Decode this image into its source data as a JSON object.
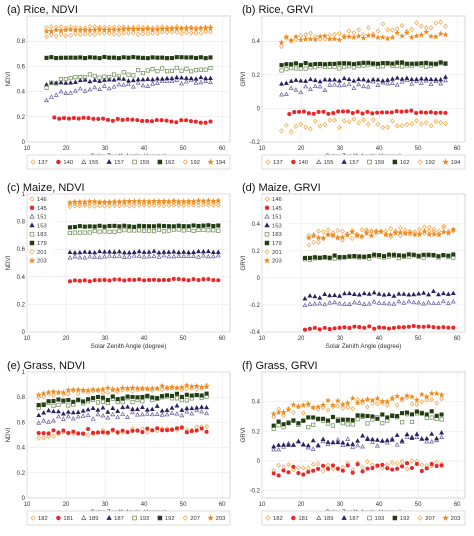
{
  "legend": {
    "series_styles": [
      {
        "shape": "diamond",
        "filled": false,
        "color": "#f4a340"
      },
      {
        "shape": "circle",
        "filled": true,
        "color": "#e8282b"
      },
      {
        "shape": "triangle",
        "filled": false,
        "color": "#6a5a9a"
      },
      {
        "shape": "triangle",
        "filled": true,
        "color": "#2b2260"
      },
      {
        "shape": "square",
        "filled": false,
        "color": "#6a8a50"
      },
      {
        "shape": "square",
        "filled": true,
        "color": "#243d14"
      },
      {
        "shape": "diamond",
        "filled": false,
        "color": "#f2a048"
      },
      {
        "shape": "star",
        "filled": true,
        "color": "#f08a20"
      }
    ]
  },
  "chart_data": [
    {
      "type": "scatter",
      "title": "(a) Rice, NDVI",
      "xlabel": "Solar Zenith Angle (degree)",
      "ylabel": "NDVI",
      "xlim": [
        10,
        62
      ],
      "ylim": [
        0,
        1.0
      ],
      "xticks": [
        10,
        20,
        30,
        40,
        50,
        60
      ],
      "yticks": [
        0,
        0.2,
        0.4,
        0.6,
        0.8
      ],
      "grid": true,
      "legend_position": "bottom",
      "legend_columns": 8,
      "series": [
        {
          "name": "137",
          "x_range": [
            15,
            57
          ],
          "start": 0.91,
          "end": 0.91,
          "jitter": 0.006
        },
        {
          "name": "140",
          "x_range": [
            17,
            57
          ],
          "start": 0.2,
          "end": 0.16,
          "jitter": 0.01
        },
        {
          "name": "155",
          "x_range": [
            15,
            57
          ],
          "start": 0.34,
          "end": 0.49,
          "jitter": 0.02
        },
        {
          "name": "157",
          "x_range": [
            15,
            57
          ],
          "start": 0.46,
          "end": 0.51,
          "jitter": 0.01
        },
        {
          "name": "159",
          "x_range": [
            15,
            57
          ],
          "start": 0.44,
          "end": 0.59,
          "jitter": 0.02
        },
        {
          "name": "162",
          "x_range": [
            15,
            57
          ],
          "start": 0.67,
          "end": 0.67,
          "jitter": 0.005
        },
        {
          "name": "192",
          "x_range": [
            15,
            57
          ],
          "start": 0.84,
          "end": 0.87,
          "jitter": 0.008
        },
        {
          "name": "194",
          "x_range": [
            15,
            57
          ],
          "start": 0.88,
          "end": 0.9,
          "jitter": 0.005
        }
      ]
    },
    {
      "type": "scatter",
      "title": "(b) Rice, GRVI",
      "xlabel": "Solar Zenith Angle (degree)",
      "ylabel": "GRVI",
      "xlim": [
        10,
        62
      ],
      "ylim": [
        -0.2,
        0.55
      ],
      "xticks": [
        10,
        20,
        30,
        40,
        50,
        60
      ],
      "yticks": [
        -0.2,
        0,
        0.2,
        0.4
      ],
      "grid": true,
      "legend_position": "bottom",
      "legend_columns": 8,
      "series": [
        {
          "name": "137",
          "x_range": [
            15,
            57
          ],
          "start": -0.12,
          "end": -0.08,
          "jitter": 0.03
        },
        {
          "name": "140",
          "x_range": [
            17,
            57
          ],
          "start": -0.03,
          "end": -0.02,
          "jitter": 0.008
        },
        {
          "name": "155",
          "x_range": [
            15,
            57
          ],
          "start": 0.09,
          "end": 0.16,
          "jitter": 0.02
        },
        {
          "name": "157",
          "x_range": [
            15,
            57
          ],
          "start": 0.15,
          "end": 0.18,
          "jitter": 0.01
        },
        {
          "name": "159",
          "x_range": [
            15,
            57
          ],
          "start": 0.23,
          "end": 0.26,
          "jitter": 0.01
        },
        {
          "name": "162",
          "x_range": [
            15,
            57
          ],
          "start": 0.26,
          "end": 0.27,
          "jitter": 0.006
        },
        {
          "name": "192",
          "x_range": [
            15,
            57
          ],
          "start": 0.38,
          "end": 0.5,
          "jitter": 0.03
        },
        {
          "name": "194",
          "x_range": [
            15,
            57
          ],
          "start": 0.4,
          "end": 0.44,
          "jitter": 0.02
        }
      ]
    },
    {
      "type": "scatter",
      "title": "(c) Maize, NDVI",
      "xlabel": "Solar Zenith Angle (degree)",
      "ylabel": "NDVI",
      "xlim": [
        10,
        62
      ],
      "ylim": [
        0,
        1.0
      ],
      "xticks": [
        10,
        20,
        30,
        40,
        50,
        60
      ],
      "yticks": [
        0,
        0.2,
        0.4,
        0.6,
        0.8,
        1.0
      ],
      "grid": true,
      "legend_position": "top-left",
      "legend_columns": 1,
      "series": [
        {
          "name": "146",
          "x_range": [
            21,
            59
          ],
          "start": 0.93,
          "end": 0.94,
          "jitter": 0.004
        },
        {
          "name": "145",
          "x_range": [
            21,
            59
          ],
          "start": 0.37,
          "end": 0.38,
          "jitter": 0.006
        },
        {
          "name": "151",
          "x_range": [
            21,
            59
          ],
          "start": 0.54,
          "end": 0.55,
          "jitter": 0.006
        },
        {
          "name": "153",
          "x_range": [
            21,
            59
          ],
          "start": 0.58,
          "end": 0.58,
          "jitter": 0.006
        },
        {
          "name": "183",
          "x_range": [
            21,
            59
          ],
          "start": 0.72,
          "end": 0.74,
          "jitter": 0.006
        },
        {
          "name": "179",
          "x_range": [
            21,
            59
          ],
          "start": 0.76,
          "end": 0.77,
          "jitter": 0.005
        },
        {
          "name": "201",
          "x_range": [
            21,
            59
          ],
          "start": 0.91,
          "end": 0.92,
          "jitter": 0.004
        },
        {
          "name": "203",
          "x_range": [
            21,
            59
          ],
          "start": 0.94,
          "end": 0.95,
          "jitter": 0.003
        }
      ]
    },
    {
      "type": "scatter",
      "title": "(d) Maize, GRVI",
      "xlabel": "Solar Zenith Angle (degree)",
      "ylabel": "GRVI",
      "xlim": [
        10,
        62
      ],
      "ylim": [
        -0.4,
        0.62
      ],
      "xticks": [
        10,
        20,
        30,
        40,
        50,
        60
      ],
      "yticks": [
        -0.4,
        -0.2,
        0,
        0.2,
        0.4
      ],
      "grid": true,
      "legend_position": "top-left",
      "legend_columns": 1,
      "series": [
        {
          "name": "146",
          "x_range": [
            22,
            59
          ],
          "start": 0.32,
          "end": 0.36,
          "jitter": 0.02
        },
        {
          "name": "145",
          "x_range": [
            21,
            59
          ],
          "start": -0.38,
          "end": -0.36,
          "jitter": 0.01
        },
        {
          "name": "151",
          "x_range": [
            21,
            59
          ],
          "start": -0.2,
          "end": -0.18,
          "jitter": 0.01
        },
        {
          "name": "153",
          "x_range": [
            21,
            59
          ],
          "start": -0.15,
          "end": -0.11,
          "jitter": 0.015
        },
        {
          "name": "183",
          "x_range": [
            21,
            59
          ],
          "start": 0.14,
          "end": 0.16,
          "jitter": 0.01
        },
        {
          "name": "179",
          "x_range": [
            21,
            59
          ],
          "start": 0.15,
          "end": 0.17,
          "jitter": 0.01
        },
        {
          "name": "201",
          "x_range": [
            22,
            59
          ],
          "start": 0.25,
          "end": 0.36,
          "jitter": 0.03
        },
        {
          "name": "203",
          "x_range": [
            22,
            59
          ],
          "start": 0.3,
          "end": 0.34,
          "jitter": 0.02
        }
      ]
    },
    {
      "type": "scatter",
      "title": "(e) Grass, NDVI",
      "xlabel": "Solar Zenith Angle (degree)",
      "ylabel": "NDVI",
      "xlim": [
        10,
        62
      ],
      "ylim": [
        0,
        1.0
      ],
      "xticks": [
        10,
        20,
        30,
        40,
        50,
        60
      ],
      "yticks": [
        0,
        0.2,
        0.4,
        0.6,
        0.8,
        1.0
      ],
      "grid": true,
      "legend_position": "bottom",
      "legend_columns": 8,
      "series": [
        {
          "name": "182",
          "x_range": [
            13,
            56
          ],
          "start": 0.48,
          "end": 0.55,
          "jitter": 0.02
        },
        {
          "name": "181",
          "x_range": [
            13,
            56
          ],
          "start": 0.52,
          "end": 0.54,
          "jitter": 0.02
        },
        {
          "name": "189",
          "x_range": [
            13,
            56
          ],
          "start": 0.6,
          "end": 0.68,
          "jitter": 0.02
        },
        {
          "name": "187",
          "x_range": [
            13,
            56
          ],
          "start": 0.66,
          "end": 0.72,
          "jitter": 0.02
        },
        {
          "name": "193",
          "x_range": [
            13,
            56
          ],
          "start": 0.72,
          "end": 0.8,
          "jitter": 0.02
        },
        {
          "name": "192",
          "x_range": [
            13,
            56
          ],
          "start": 0.74,
          "end": 0.82,
          "jitter": 0.015
        },
        {
          "name": "207",
          "x_range": [
            13,
            56
          ],
          "start": 0.8,
          "end": 0.88,
          "jitter": 0.015
        },
        {
          "name": "203",
          "x_range": [
            13,
            56
          ],
          "start": 0.82,
          "end": 0.89,
          "jitter": 0.01
        }
      ]
    },
    {
      "type": "scatter",
      "title": "(f) Grass, GRVI",
      "xlabel": "Solar Zenith Angle (degree)",
      "ylabel": "GRVI",
      "xlim": [
        10,
        62
      ],
      "ylim": [
        -0.25,
        0.6
      ],
      "xticks": [
        10,
        20,
        30,
        40,
        50,
        60
      ],
      "yticks": [
        -0.2,
        0,
        0.2,
        0.4
      ],
      "grid": true,
      "legend_position": "bottom",
      "legend_columns": 8,
      "series": [
        {
          "name": "182",
          "x_range": [
            13,
            56
          ],
          "start": -0.06,
          "end": -0.02,
          "jitter": 0.03
        },
        {
          "name": "181",
          "x_range": [
            13,
            56
          ],
          "start": -0.08,
          "end": -0.04,
          "jitter": 0.03
        },
        {
          "name": "189",
          "x_range": [
            13,
            56
          ],
          "start": 0.08,
          "end": 0.14,
          "jitter": 0.03
        },
        {
          "name": "187",
          "x_range": [
            13,
            56
          ],
          "start": 0.1,
          "end": 0.16,
          "jitter": 0.03
        },
        {
          "name": "193",
          "x_range": [
            13,
            56
          ],
          "start": 0.22,
          "end": 0.3,
          "jitter": 0.03
        },
        {
          "name": "192",
          "x_range": [
            13,
            56
          ],
          "start": 0.24,
          "end": 0.32,
          "jitter": 0.02
        },
        {
          "name": "207",
          "x_range": [
            13,
            56
          ],
          "start": 0.3,
          "end": 0.42,
          "jitter": 0.03
        },
        {
          "name": "203",
          "x_range": [
            13,
            56
          ],
          "start": 0.32,
          "end": 0.44,
          "jitter": 0.02
        }
      ]
    }
  ]
}
